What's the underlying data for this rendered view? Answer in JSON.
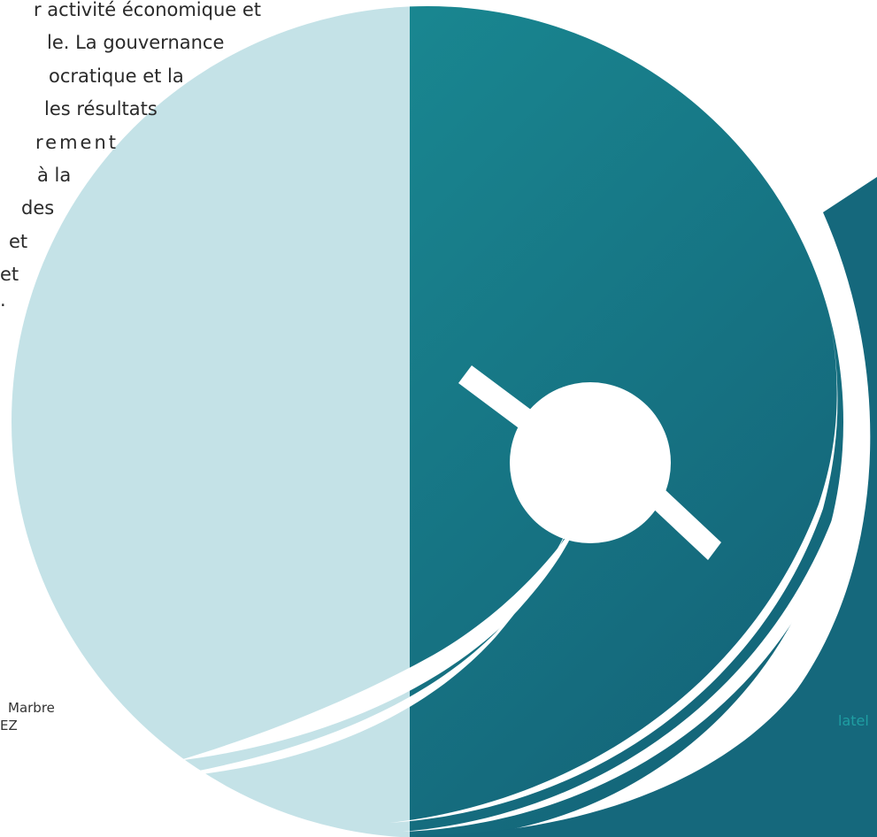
{
  "colors": {
    "light_half": "#c4e2e7",
    "teal_top": "#1b9399",
    "teal_bottom": "#135f75",
    "swoosh": "#ffffff",
    "text": "#2a2a2a",
    "link": "#1f9ea3"
  },
  "paragraph": {
    "lines": [
      "r activité économique et",
      "le. La gouvernance",
      "ocratique et la",
      "les résultats",
      "rement",
      "à   la",
      "des",
      "et",
      "et",
      "."
    ]
  },
  "caption": {
    "line1": "Marbre",
    "line2": "EZ"
  },
  "link_text": "latel",
  "logo": {
    "icon": "compass-swoosh-logo"
  }
}
